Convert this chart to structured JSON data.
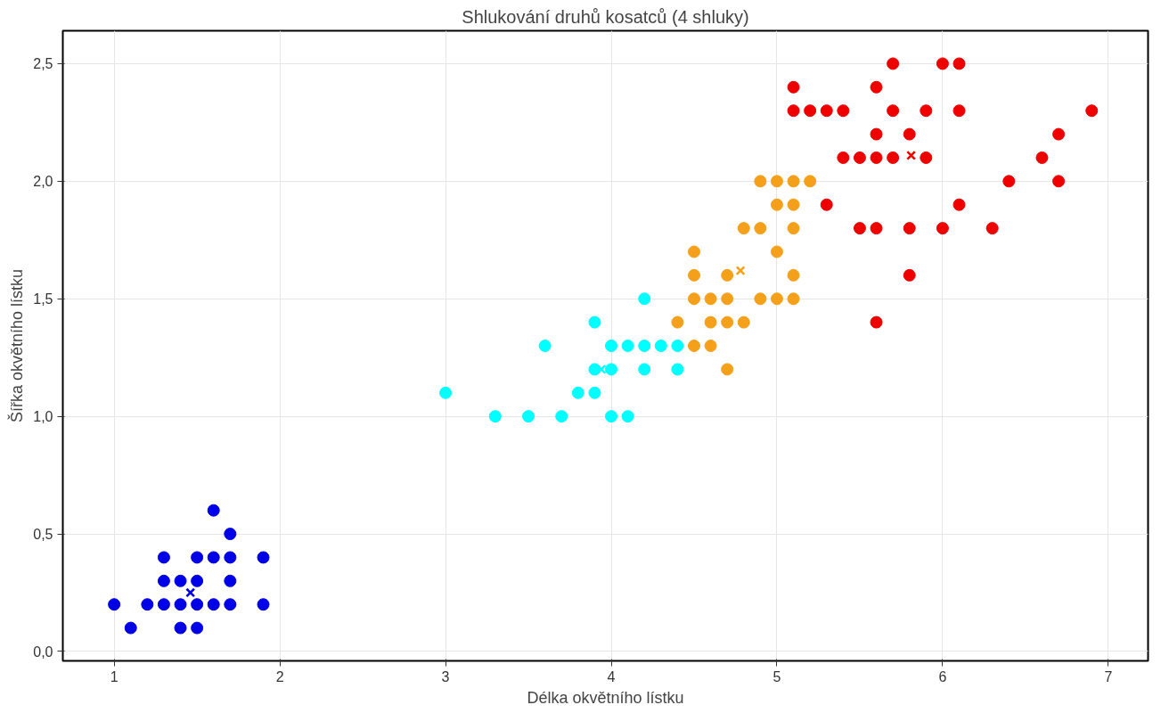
{
  "chart_data": {
    "type": "scatter",
    "title": "Shlukování druhů kosatců (4 shluky)",
    "xlabel": "Délka okvětního lístku",
    "ylabel": "Šířka okvětního lístku",
    "xlim": [
      0.69,
      7.24
    ],
    "ylim": [
      -0.04,
      2.64
    ],
    "xticks": [
      1,
      2,
      3,
      4,
      5,
      6,
      7
    ],
    "yticks": [
      {
        "value": 0,
        "label": "0,0"
      },
      {
        "value": 0.5,
        "label": "0,5"
      },
      {
        "value": 1,
        "label": "1,0"
      },
      {
        "value": 1.5,
        "label": "1,5"
      },
      {
        "value": 2,
        "label": "2,0"
      },
      {
        "value": 2.5,
        "label": "2,5"
      }
    ],
    "grid": true,
    "series": [
      {
        "color": "#0000e6",
        "marker": "circle",
        "x": [
          1.6,
          1.7,
          1.3,
          1.5,
          1.6,
          1.7,
          1.9,
          1.3,
          1.4,
          1.5,
          1.7,
          1.0,
          1.2,
          1.3,
          1.4,
          1.5,
          1.6,
          1.7,
          1.9,
          1.1,
          1.4,
          1.5
        ],
        "values": [
          0.6,
          0.5,
          0.4,
          0.4,
          0.4,
          0.4,
          0.4,
          0.3,
          0.3,
          0.3,
          0.3,
          0.2,
          0.2,
          0.2,
          0.2,
          0.2,
          0.2,
          0.2,
          0.2,
          0.1,
          0.1,
          0.1
        ]
      },
      {
        "color": "#00ffff",
        "marker": "circle",
        "x": [
          4.2,
          3.9,
          3.6,
          4.0,
          4.1,
          4.2,
          4.3,
          4.4,
          3.9,
          4.0,
          4.2,
          4.4,
          3.0,
          3.8,
          3.9,
          3.3,
          3.5,
          3.7,
          4.0,
          4.1
        ],
        "values": [
          1.5,
          1.4,
          1.3,
          1.3,
          1.3,
          1.3,
          1.3,
          1.3,
          1.2,
          1.2,
          1.2,
          1.2,
          1.1,
          1.1,
          1.1,
          1.0,
          1.0,
          1.0,
          1.0,
          1.0
        ]
      },
      {
        "color": "#f5a01a",
        "marker": "circle",
        "x": [
          4.9,
          5.0,
          5.1,
          5.2,
          5.0,
          5.1,
          4.8,
          4.9,
          5.1,
          4.5,
          5.0,
          4.5,
          4.7,
          5.1,
          4.5,
          4.6,
          4.7,
          4.9,
          5.0,
          5.1,
          4.4,
          4.6,
          4.7,
          4.8,
          4.5,
          4.6,
          4.7
        ],
        "values": [
          2.0,
          2.0,
          2.0,
          2.0,
          1.9,
          1.9,
          1.8,
          1.8,
          1.8,
          1.7,
          1.7,
          1.6,
          1.6,
          1.6,
          1.5,
          1.5,
          1.5,
          1.5,
          1.5,
          1.5,
          1.4,
          1.4,
          1.4,
          1.4,
          1.3,
          1.3,
          1.2
        ]
      },
      {
        "color": "#ee0000",
        "marker": "circle",
        "x": [
          5.7,
          6.0,
          6.1,
          5.1,
          5.6,
          5.1,
          5.2,
          5.3,
          5.4,
          5.7,
          5.9,
          6.1,
          6.9,
          5.6,
          5.8,
          6.7,
          5.4,
          5.5,
          5.6,
          5.7,
          5.9,
          6.6,
          6.4,
          6.7,
          5.3,
          6.1,
          5.5,
          5.6,
          5.8,
          6.0,
          6.3,
          5.8,
          5.6
        ],
        "values": [
          2.5,
          2.5,
          2.5,
          2.4,
          2.4,
          2.3,
          2.3,
          2.3,
          2.3,
          2.3,
          2.3,
          2.3,
          2.3,
          2.2,
          2.2,
          2.2,
          2.1,
          2.1,
          2.1,
          2.1,
          2.1,
          2.1,
          2.0,
          2.0,
          1.9,
          1.9,
          1.8,
          1.8,
          1.8,
          1.8,
          1.8,
          1.6,
          1.4
        ]
      },
      {
        "color": "#0000e6",
        "marker": "cross",
        "x": [
          1.46
        ],
        "values": [
          0.25
        ]
      },
      {
        "color": "#00ffff",
        "marker": "cross",
        "x": [
          3.94
        ],
        "values": [
          1.2
        ]
      },
      {
        "color": "#f5a01a",
        "marker": "cross",
        "x": [
          4.78
        ],
        "values": [
          1.62
        ]
      },
      {
        "color": "#ee0000",
        "marker": "cross",
        "x": [
          5.81
        ],
        "values": [
          2.11
        ]
      }
    ]
  }
}
